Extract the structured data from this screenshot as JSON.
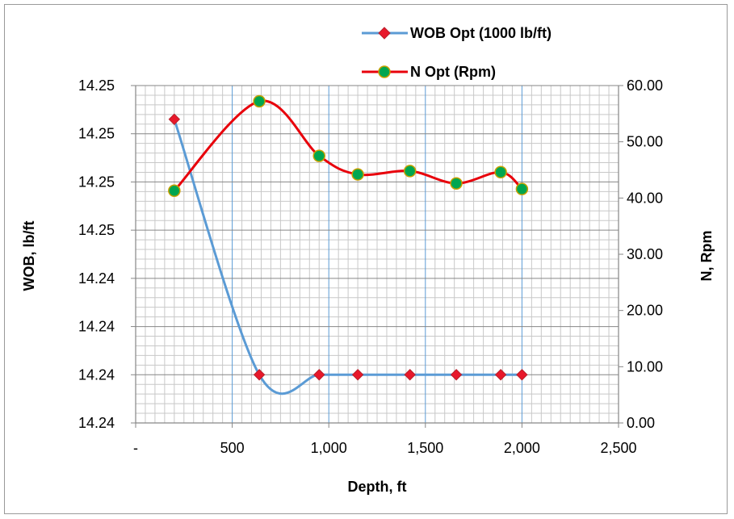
{
  "chart_data": {
    "type": "line",
    "title": "",
    "xlabel": "Depth, ft",
    "ylabel": "WOB, lb/ft",
    "y2label": "N, Rpm",
    "xlim": [
      0,
      2500
    ],
    "x_ticks": [
      "-",
      "500",
      "1,000",
      "1,500",
      "2,000",
      "2,500"
    ],
    "y_left_ticks": [
      "14.24",
      "14.24",
      "14.24",
      "14.24",
      "14.25",
      "14.25",
      "14.25",
      "14.25"
    ],
    "y_right_ticks": [
      "0.00",
      "10.00",
      "20.00",
      "30.00",
      "40.00",
      "50.00",
      "60.00"
    ],
    "ylim_left_levels": [
      0,
      7
    ],
    "ylim_right": [
      0,
      60
    ],
    "legend_position": "top-right",
    "grid": true,
    "series": [
      {
        "name": "WOB Opt (1000 lb/ft)",
        "axis": "left",
        "color": "#5b9bd5",
        "marker_color": "#e8182b",
        "marker": "diamond",
        "x": [
          200,
          640,
          950,
          1150,
          1420,
          1660,
          1890,
          2000
        ],
        "y": [
          6.3,
          1.0,
          1.0,
          1.0,
          1.0,
          1.0,
          1.0,
          1.0
        ]
      },
      {
        "name": "N Opt (Rpm)",
        "axis": "right",
        "color": "#e8000b",
        "marker_color": "#00a650",
        "marker": "circle",
        "x": [
          200,
          640,
          950,
          1150,
          1420,
          1660,
          1890,
          2000
        ],
        "y": [
          41.3,
          57.2,
          47.5,
          44.2,
          44.8,
          42.6,
          44.6,
          41.6
        ]
      }
    ]
  }
}
